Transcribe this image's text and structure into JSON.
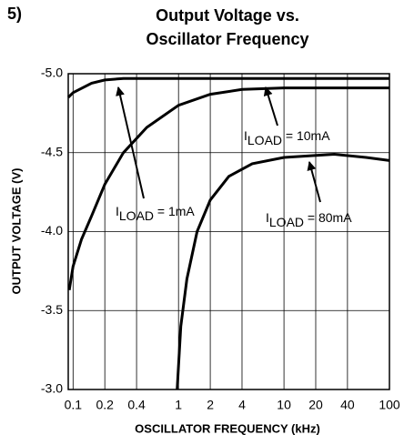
{
  "chart_data": {
    "type": "line",
    "number": "5)",
    "title": "Output Voltage vs.",
    "subtitle": "Oscillator Frequency",
    "x_label": "OSCILLATOR FREQUENCY (kHz)",
    "y_label": "OUTPUT VOLTAGE (V)",
    "log_x": true,
    "grid": true,
    "xlim": [
      0.09,
      100
    ],
    "ylim": [
      -3.0,
      -5.0
    ],
    "xticks": [
      0.1,
      0.2,
      0.4,
      1,
      2,
      4,
      10,
      20,
      40,
      100
    ],
    "yticks": [
      {
        "value": -5.0,
        "label": "-5.0"
      },
      {
        "value": -4.5,
        "label": "-4.5"
      },
      {
        "value": -4.0,
        "label": "-4.0"
      },
      {
        "value": -3.5,
        "label": "-3.5"
      },
      {
        "value": -3.0,
        "label": "-3.0"
      }
    ],
    "series": [
      {
        "name": "1mA",
        "color": "#000000",
        "x": [
          0.09,
          0.1,
          0.15,
          0.2,
          0.3,
          1,
          10,
          100
        ],
        "values": [
          -4.85,
          -4.88,
          -4.94,
          -4.96,
          -4.97,
          -4.97,
          -4.97,
          -4.97
        ]
      },
      {
        "name": "10mA",
        "color": "#000000",
        "x": [
          0.092,
          0.1,
          0.12,
          0.15,
          0.2,
          0.3,
          0.5,
          1,
          2,
          4,
          10,
          100
        ],
        "values": [
          -3.63,
          -3.78,
          -3.95,
          -4.1,
          -4.3,
          -4.5,
          -4.66,
          -4.8,
          -4.87,
          -4.9,
          -4.91,
          -4.91
        ]
      },
      {
        "name": "80mA",
        "color": "#000000",
        "x": [
          0.97,
          1.05,
          1.2,
          1.5,
          2,
          3,
          5,
          10,
          30,
          60,
          100
        ],
        "values": [
          -3.0,
          -3.4,
          -3.7,
          -4.0,
          -4.2,
          -4.35,
          -4.43,
          -4.47,
          -4.49,
          -4.47,
          -4.45
        ]
      }
    ],
    "annotations": [
      {
        "prefix": "I",
        "subscript": "LOAD",
        "suffix": " = 1mA"
      },
      {
        "prefix": "I",
        "subscript": "LOAD",
        "suffix": " = 10mA"
      },
      {
        "prefix": "I",
        "subscript": "LOAD",
        "suffix": " = 80mA"
      }
    ]
  }
}
